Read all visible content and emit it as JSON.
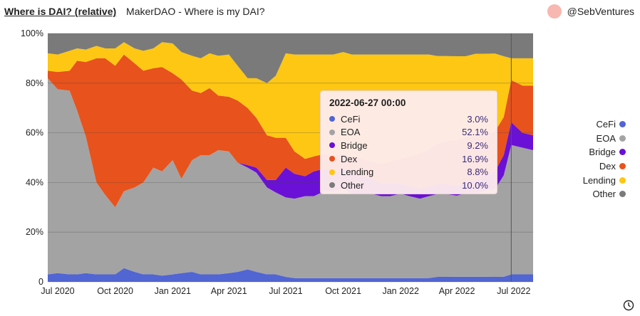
{
  "header": {
    "title": "Where is DAI? (relative)",
    "subtitle": "MakerDAO - Where is my DAI?",
    "author": "@SebVentures"
  },
  "icons": {
    "avatar": "avatar-circle",
    "clock": "clock-icon"
  },
  "tooltip": {
    "date": "2022-06-27 00:00",
    "rows": [
      {
        "name": "CeFi",
        "value": "3.0%"
      },
      {
        "name": "EOA",
        "value": "52.1%"
      },
      {
        "name": "Bridge",
        "value": "9.2%"
      },
      {
        "name": "Dex",
        "value": "16.9%"
      },
      {
        "name": "Lending",
        "value": "8.8%"
      },
      {
        "name": "Other",
        "value": "10.0%"
      }
    ]
  },
  "chart_data": {
    "type": "area",
    "stacked": true,
    "normalized": true,
    "title": "Where is DAI? (relative)",
    "x_ticks": [
      "Jul 2020",
      "Oct 2020",
      "Jan 2021",
      "Apr 2021",
      "Jul 2021",
      "Oct 2021",
      "Jan 2022",
      "Apr 2022",
      "Jul 2022"
    ],
    "y_ticks": [
      "0",
      "20%",
      "40%",
      "60%",
      "80%",
      "100%"
    ],
    "ylim": [
      0,
      100
    ],
    "grid": true,
    "legend_position": "right",
    "highlight_date": "2022-06-27",
    "x": [
      "2020-06-15",
      "2020-07-01",
      "2020-07-20",
      "2020-08-01",
      "2020-08-15",
      "2020-09-01",
      "2020-09-15",
      "2020-10-01",
      "2020-10-15",
      "2020-11-01",
      "2020-11-15",
      "2020-12-01",
      "2020-12-15",
      "2021-01-01",
      "2021-01-15",
      "2021-02-01",
      "2021-02-15",
      "2021-03-01",
      "2021-03-15",
      "2021-04-01",
      "2021-04-15",
      "2021-05-01",
      "2021-05-15",
      "2021-06-01",
      "2021-06-15",
      "2021-07-01",
      "2021-07-15",
      "2021-08-01",
      "2021-08-15",
      "2021-09-01",
      "2021-09-15",
      "2021-10-01",
      "2021-10-15",
      "2021-11-01",
      "2021-11-15",
      "2021-12-01",
      "2021-12-15",
      "2022-01-01",
      "2022-01-15",
      "2022-02-01",
      "2022-02-15",
      "2022-03-01",
      "2022-03-15",
      "2022-04-01",
      "2022-04-15",
      "2022-05-01",
      "2022-05-15",
      "2022-06-01",
      "2022-06-15",
      "2022-06-27",
      "2022-07-15",
      "2022-08-01"
    ],
    "series": [
      {
        "name": "CeFi",
        "color": "#5165d3",
        "values": [
          3,
          3.5,
          3,
          3,
          3.5,
          3,
          3,
          3,
          5.5,
          4,
          3,
          3,
          2.5,
          3,
          3.5,
          4,
          3,
          3,
          3,
          3.5,
          4,
          5,
          4,
          3,
          3,
          2,
          1.5,
          1.5,
          1.5,
          1.5,
          1.5,
          1.5,
          1.5,
          1.5,
          1.5,
          1.5,
          1.5,
          1.5,
          1.5,
          1.5,
          1.5,
          2,
          2,
          2,
          2,
          2,
          2,
          2,
          2,
          3,
          3,
          3
        ]
      },
      {
        "name": "EOA",
        "color": "#a3a3a3",
        "values": [
          79,
          74,
          74,
          66,
          55,
          37,
          32,
          27,
          31,
          34,
          37,
          43,
          42,
          46,
          38,
          45,
          48,
          48,
          50,
          49,
          44,
          41,
          40,
          35,
          33,
          32,
          32,
          33,
          33,
          35,
          35,
          36,
          34,
          34,
          34,
          33,
          33,
          34,
          33,
          32,
          33,
          33,
          33,
          32,
          33,
          33,
          34,
          35,
          40,
          52.1,
          51,
          50
        ]
      },
      {
        "name": "Bridge",
        "color": "#6b10d6",
        "values": [
          0,
          0,
          0,
          0,
          0,
          0,
          0,
          0,
          0,
          0,
          0,
          0,
          0,
          0,
          0,
          0,
          0,
          0,
          0,
          0,
          0,
          1,
          2,
          3,
          5,
          12,
          10,
          8,
          10,
          9,
          8,
          8,
          9,
          7,
          6,
          5,
          5,
          4,
          4,
          4,
          4,
          4,
          4,
          4,
          4,
          5,
          6,
          7,
          8,
          9.2,
          6,
          6
        ]
      },
      {
        "name": "Dex",
        "color": "#e8521c",
        "values": [
          3,
          7,
          8,
          20,
          30,
          50,
          55,
          57,
          55,
          50,
          45,
          40,
          42,
          35,
          40,
          28,
          25,
          27,
          22,
          22,
          25,
          23,
          20,
          18,
          17,
          12,
          9,
          7,
          6,
          6,
          6,
          6,
          6,
          7,
          7,
          8,
          9,
          10,
          12,
          14,
          15,
          16,
          17,
          18,
          18,
          18,
          16,
          16,
          15,
          16.9,
          19,
          20
        ]
      },
      {
        "name": "Lending",
        "color": "#fdc713",
        "values": [
          7,
          7,
          8,
          5,
          5,
          5,
          4,
          7,
          5,
          6,
          8,
          8,
          10,
          12,
          11,
          14,
          14,
          14,
          16,
          17,
          14,
          12,
          16,
          21,
          25,
          34,
          39,
          42,
          41,
          40,
          41,
          41,
          41,
          42,
          43,
          44,
          43,
          42,
          41,
          40,
          38,
          35,
          34,
          33,
          32,
          32,
          32,
          31,
          24,
          8.8,
          11,
          11
        ]
      },
      {
        "name": "Other",
        "color": "#7a7a7a",
        "values": [
          8,
          8.5,
          7,
          6,
          6.5,
          5,
          6,
          6,
          3.5,
          6,
          7,
          6,
          3.5,
          4,
          7.5,
          9,
          10,
          8,
          9,
          8.5,
          13,
          18,
          18,
          20,
          17,
          8,
          8.5,
          8.5,
          8.5,
          8.5,
          8.5,
          7.5,
          8.5,
          8.5,
          8.5,
          8.5,
          8.5,
          8.5,
          8.5,
          8.5,
          8.5,
          9,
          9,
          9,
          9,
          8,
          8,
          8,
          9,
          10.0,
          10,
          10
        ]
      }
    ]
  }
}
